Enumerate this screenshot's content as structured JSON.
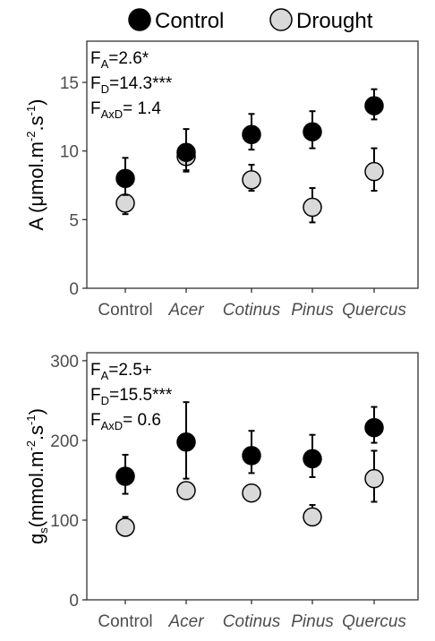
{
  "legend": {
    "entries": [
      {
        "label": "Control",
        "color": "#000000"
      },
      {
        "label": "Drought",
        "color": "#d9d9d9"
      }
    ],
    "placement": "top"
  },
  "chart_data": [
    {
      "type": "scatter",
      "categories": [
        "Control",
        "Acer",
        "Cotinus",
        "Pinus",
        "Quercus"
      ],
      "categories_italic": [
        false,
        true,
        true,
        true,
        true
      ],
      "ylabel": {
        "main": "A (μmol.m",
        "sup1": "-2",
        "mid": ".s",
        "sup2": "-1",
        "end": ")"
      },
      "ylim": [
        0,
        18
      ],
      "yticks": [
        0,
        5,
        10,
        15
      ],
      "grid": false,
      "annotations": [
        {
          "base": "F",
          "sub": "A",
          "rest": "=2.6*"
        },
        {
          "base": "F",
          "sub": "D",
          "rest": "=14.3***"
        },
        {
          "base": "F",
          "sub": "AxD",
          "rest": "= 1.4"
        }
      ],
      "series": [
        {
          "name": "Control",
          "color": "#000000",
          "values": [
            8.0,
            9.9,
            11.2,
            11.4,
            13.3
          ],
          "err_low": [
            6.8,
            8.6,
            10.1,
            10.2,
            12.3
          ],
          "err_high": [
            9.5,
            11.6,
            12.7,
            12.9,
            14.5
          ]
        },
        {
          "name": "Drought",
          "color": "#d9d9d9",
          "values": [
            6.2,
            9.6,
            7.9,
            5.9,
            8.5
          ],
          "err_low": [
            5.4,
            8.5,
            7.1,
            4.8,
            7.1
          ],
          "err_high": [
            6.7,
            10.2,
            9.0,
            7.3,
            10.2
          ]
        }
      ]
    },
    {
      "type": "scatter",
      "categories": [
        "Control",
        "Acer",
        "Cotinus",
        "Pinus",
        "Quercus"
      ],
      "categories_italic": [
        false,
        true,
        true,
        true,
        true
      ],
      "ylabel": {
        "main": "g",
        "sub": "s",
        "mid": "(mmol.m",
        "sup1": "-2",
        "mid2": ".s",
        "sup2": "-1",
        "end": ")"
      },
      "ylim": [
        0,
        310
      ],
      "yticks": [
        0,
        100,
        200,
        300
      ],
      "grid": false,
      "annotations": [
        {
          "base": "F",
          "sub": "A",
          "rest": "=2.5+"
        },
        {
          "base": "F",
          "sub": "D",
          "rest": "=15.5***"
        },
        {
          "base": "F",
          "sub": "AxD",
          "rest": "= 0.6"
        }
      ],
      "series": [
        {
          "name": "Control",
          "color": "#000000",
          "values": [
            155,
            198,
            181,
            177,
            216
          ],
          "err_low": [
            133,
            152,
            159,
            154,
            197
          ],
          "err_high": [
            182,
            248,
            212,
            207,
            242
          ]
        },
        {
          "name": "Drought",
          "color": "#d9d9d9",
          "values": [
            91,
            137,
            134,
            104,
            152
          ],
          "err_low": [
            86,
            132,
            129,
            98,
            123
          ],
          "err_high": [
            104,
            140,
            139,
            119,
            187
          ]
        }
      ]
    }
  ]
}
